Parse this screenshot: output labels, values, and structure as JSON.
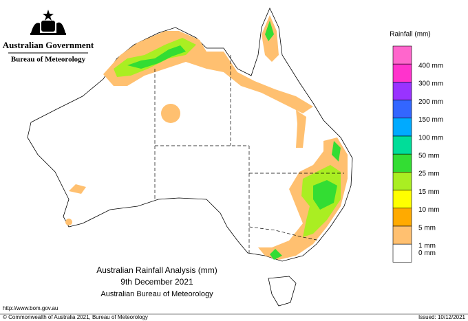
{
  "header": {
    "government": "Australian Government",
    "bureau": "Bureau of Meteorology"
  },
  "legend": {
    "title": "Rainfall (mm)",
    "items": [
      {
        "label": "400 mm",
        "color": "#ff66cc"
      },
      {
        "label": "300 mm",
        "color": "#ff33cc"
      },
      {
        "label": "200 mm",
        "color": "#9933ff"
      },
      {
        "label": "150 mm",
        "color": "#3366ff"
      },
      {
        "label": "100 mm",
        "color": "#00aaff"
      },
      {
        "label": "50 mm",
        "color": "#00dd99"
      },
      {
        "label": "25 mm",
        "color": "#33dd33"
      },
      {
        "label": "15 mm",
        "color": "#aaee22"
      },
      {
        "label": "10 mm",
        "color": "#ffff00"
      },
      {
        "label": "5 mm",
        "color": "#ffaa00"
      },
      {
        "label": "1 mm",
        "color": "#ffc070"
      },
      {
        "label": "0 mm",
        "color": "#ffffff"
      }
    ]
  },
  "map": {
    "title": "Australian Rainfall Analysis (mm)",
    "date": "9th December 2021",
    "source": "Australian Bureau of Meteorology"
  },
  "footer": {
    "url": "http://www.bom.gov.au",
    "copyright": "© Commonwealth of Australia 2021, Bureau of Meteorology",
    "issued": "Issued: 10/12/2021"
  }
}
